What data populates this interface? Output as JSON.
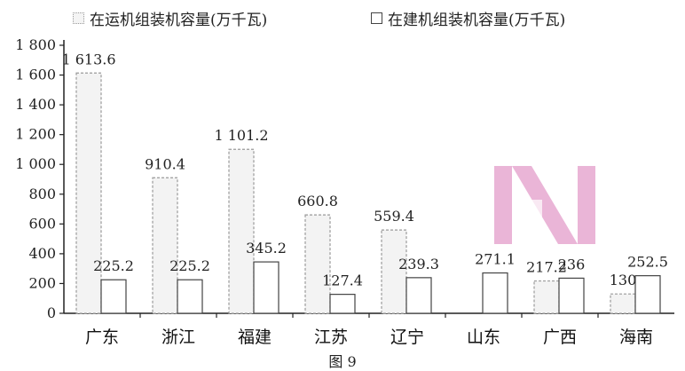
{
  "legend": {
    "series1": "在运机组装机容量(万千瓦)",
    "series2": "在建机组装机容量(万千瓦)"
  },
  "caption": "图 9",
  "colors": {
    "bar_running_fill": "#f3f3f3",
    "bar_running_stroke": "#9a9a9a",
    "bar_building_fill": "#ffffff",
    "bar_building_stroke": "#444444",
    "watermark": "#d15ca7"
  },
  "chart_data": {
    "type": "bar",
    "categories": [
      "广东",
      "浙江",
      "福建",
      "江苏",
      "辽宁",
      "山东",
      "广西",
      "海南"
    ],
    "series": [
      {
        "name": "在运机组装机容量(万千瓦)",
        "values": [
          1613.6,
          910.4,
          1101.2,
          660.8,
          559.4,
          0,
          217.2,
          130
        ],
        "labels": [
          "1 613.6",
          "910.4",
          "1 101.2",
          "660.8",
          "559.4",
          "",
          "217.2",
          "130"
        ]
      },
      {
        "name": "在建机组装机容量(万千瓦)",
        "values": [
          225.2,
          225.2,
          345.2,
          127.4,
          239.3,
          271.1,
          236,
          252.5
        ],
        "labels": [
          "225.2",
          "225.2",
          "345.2",
          "127.4",
          "239.3",
          "271.1",
          "236",
          "252.5"
        ]
      }
    ],
    "yticks": [
      0,
      200,
      400,
      600,
      800,
      1000,
      1200,
      1400,
      1600,
      1800
    ],
    "ytick_labels": [
      "0",
      "200",
      "400",
      "600",
      "800",
      "1 000",
      "1 200",
      "1 400",
      "1 600",
      "1 800"
    ],
    "ylim": [
      0,
      1800
    ],
    "xlabel": "",
    "ylabel": "",
    "grid": false,
    "legend_position": "top"
  }
}
